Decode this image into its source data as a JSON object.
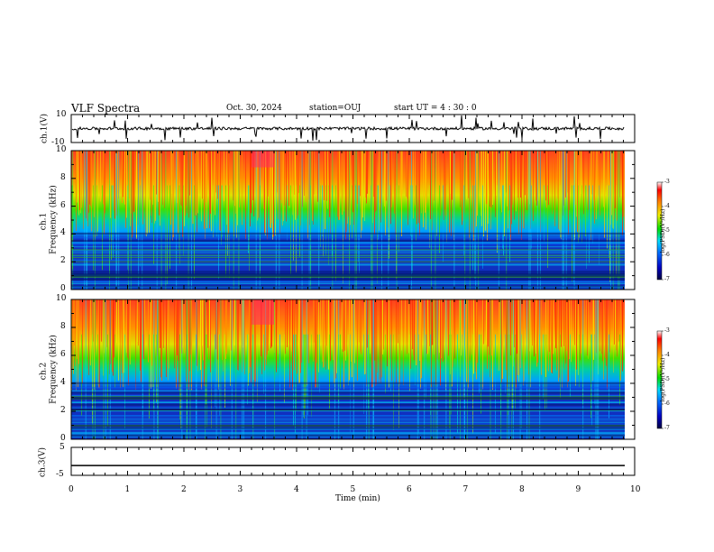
{
  "header": {
    "title": "VLF Spectra",
    "date": "Oct. 30, 2024",
    "station": "station=OUJ",
    "start_ut": "start  UT  =    4  : 30 : 0"
  },
  "chart_data": [
    {
      "type": "line",
      "panel": "ch1-waveform",
      "ylabel": "ch.1(V)",
      "ylim": [
        -10,
        10
      ],
      "y_ticks": [
        "10",
        "-10"
      ],
      "x_range_min": [
        0,
        10
      ],
      "baseline_value": 0,
      "description_values": "noisy signal near 0 V with sparse spikes"
    },
    {
      "type": "heatmap",
      "panel": "ch1-spectrogram",
      "ylabel_top": "ch.1",
      "ylabel": "Frequency  (kHz)",
      "ylim": [
        0,
        10
      ],
      "y_ticks": [
        "0",
        "2",
        "4",
        "6",
        "8",
        "10"
      ],
      "x_range_min": [
        0,
        9.85
      ],
      "colorbar": {
        "label": "log(PSD)(V²/Hz)",
        "range": [
          -7,
          -3
        ],
        "ticks": [
          "-3",
          "-4",
          "-5",
          "-6",
          "-7"
        ]
      }
    },
    {
      "type": "heatmap",
      "panel": "ch2-spectrogram",
      "ylabel_top": "ch.2",
      "ylabel": "Frequency  (kHz)",
      "ylim": [
        0,
        10
      ],
      "y_ticks": [
        "0",
        "2",
        "4",
        "6",
        "8",
        "10"
      ],
      "x_range_min": [
        0,
        9.85
      ],
      "colorbar": {
        "label": "log(PSD)(V²/Hz)",
        "range": [
          -7,
          -3
        ],
        "ticks": [
          "-3",
          "-4",
          "-5",
          "-6",
          "-7"
        ]
      }
    },
    {
      "type": "line",
      "panel": "ch3-waveform",
      "ylabel": "ch.3(V)",
      "ylim": [
        -5,
        5
      ],
      "y_ticks": [
        "5",
        "-5"
      ],
      "baseline_value": -1.5
    }
  ],
  "x_axis": {
    "label": "Time  (min)",
    "ticks": [
      "0",
      "1",
      "2",
      "3",
      "4",
      "5",
      "6",
      "7",
      "8",
      "9",
      "10"
    ],
    "range": [
      0,
      10
    ]
  }
}
